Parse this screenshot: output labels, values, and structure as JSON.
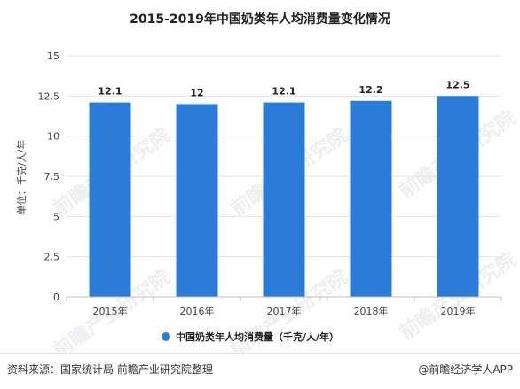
{
  "chart_data": {
    "type": "bar",
    "title": "2015-2019年中国奶类年人均消费量变化情况",
    "ylabel": "单位：千克/人/年",
    "categories": [
      "2015年",
      "2016年",
      "2017年",
      "2018年",
      "2019年"
    ],
    "series": [
      {
        "name": "中国奶类年人均消费量（千克/人/年）",
        "values": [
          12.1,
          12,
          12.1,
          12.2,
          12.5
        ],
        "color": "#2b7bd8"
      }
    ],
    "value_labels": [
      "12.1",
      "12",
      "12.1",
      "12.2",
      "12.5"
    ],
    "ylim": [
      0,
      15
    ],
    "yticks": [
      0,
      2.5,
      5,
      7.5,
      10,
      12.5,
      15
    ],
    "ytick_labels": [
      "0",
      "2.5",
      "5",
      "7.5",
      "10",
      "12.5",
      "15"
    ],
    "grid": true,
    "legend": "bottom"
  },
  "watermark": "前瞻产业研究院",
  "footer": {
    "source": "资料来源：国家统计局 前瞻产业研究院整理",
    "credit": "@前瞻经济学人APP"
  }
}
